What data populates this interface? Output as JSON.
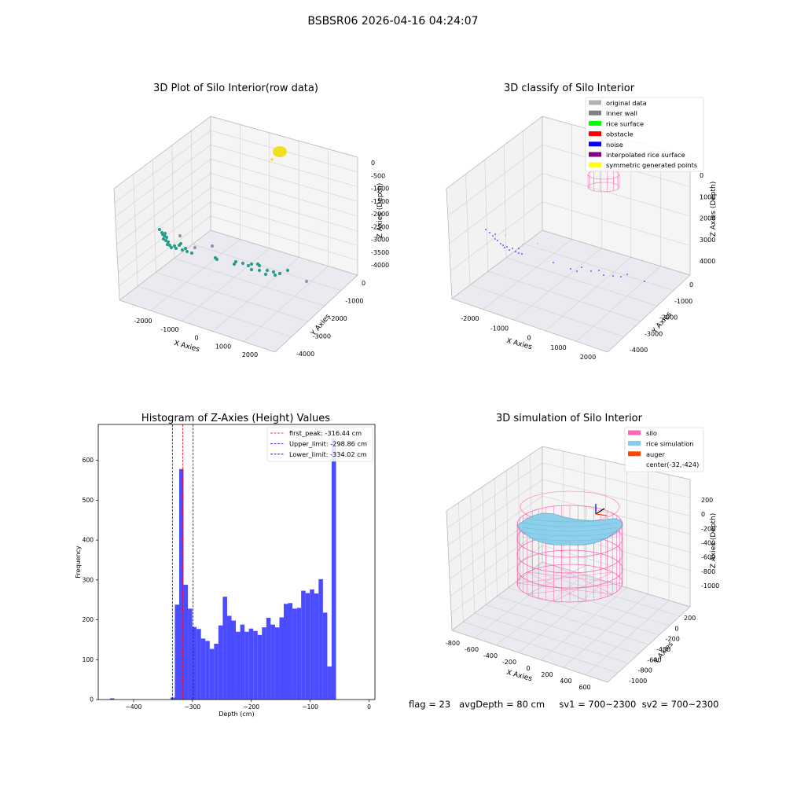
{
  "suptitle": "BSBSR06 2026-04-16 04:24:07",
  "footer": "flag = 23   avgDepth = 80 cm     sv1 = 700~2300  sv2 = 700~2300",
  "chart_data": [
    {
      "type": "scatter",
      "projection": "3d",
      "title": "3D Plot of Silo Interior(row data)",
      "xlabel": "X Axies",
      "ylabel": "Y Axies",
      "zlabel": "Z Axies (Depth)",
      "xticks": [
        "-2000",
        "-1000",
        "0",
        "1000",
        "2000"
      ],
      "yticks": [
        "0",
        "-1000",
        "-2000",
        "-3000",
        "-4000"
      ],
      "zticks": [
        "0",
        "-500",
        "-1000",
        "-1500",
        "-2000",
        "-2500",
        "-3000",
        "-3500",
        "-4000"
      ],
      "grid": true,
      "colors": {
        "points": "#2a9d8f",
        "outlier": "#8e94b8",
        "top_cluster": "#f0e020"
      }
    },
    {
      "type": "scatter",
      "projection": "3d",
      "title": "3D classify of Silo Interior",
      "xlabel": "X Axies",
      "ylabel": "Y Axies",
      "zlabel": "Z Axies (Depth)",
      "xticks": [
        "-2000",
        "-1000",
        "0",
        "1000",
        "2000"
      ],
      "yticks": [
        "0",
        "-1000",
        "-2000",
        "-3000",
        "-4000"
      ],
      "zticks": [
        "0",
        "1000",
        "2000",
        "3000",
        "4000"
      ],
      "grid": true,
      "legend_position": "top-right",
      "legend": [
        {
          "label": "original data",
          "color": "#b3b3b3"
        },
        {
          "label": "inner wall",
          "color": "#808080"
        },
        {
          "label": "rice surface",
          "color": "#00ff00"
        },
        {
          "label": "obstacle",
          "color": "#ff0000"
        },
        {
          "label": "noise",
          "color": "#0000ff"
        },
        {
          "label": "interpolated rice surface",
          "color": "#800080"
        },
        {
          "label": "symmetric generated points",
          "color": "#ffff00"
        }
      ]
    },
    {
      "type": "bar",
      "title": "Histogram of Z-Axies (Height) Values",
      "xlabel": "Depth (cm)",
      "ylabel": "Frequency",
      "xlim": [
        -460,
        10
      ],
      "ylim": [
        0,
        690
      ],
      "xticks": [
        -400,
        -300,
        -200,
        -100,
        0
      ],
      "yticks": [
        0,
        100,
        200,
        300,
        400,
        500,
        600
      ],
      "bin_width": 7.4,
      "bars": [
        {
          "x": -440,
          "value": 3
        },
        {
          "x": -337.3,
          "value": 5
        },
        {
          "x": -329.9,
          "value": 238
        },
        {
          "x": -322.5,
          "value": 578
        },
        {
          "x": -315.1,
          "value": 288
        },
        {
          "x": -307.7,
          "value": 228
        },
        {
          "x": -300.3,
          "value": 182
        },
        {
          "x": -292.9,
          "value": 177
        },
        {
          "x": -285.5,
          "value": 153
        },
        {
          "x": -278.1,
          "value": 147
        },
        {
          "x": -270.7,
          "value": 127
        },
        {
          "x": -263.3,
          "value": 140
        },
        {
          "x": -255.9,
          "value": 186
        },
        {
          "x": -248.5,
          "value": 258
        },
        {
          "x": -241.1,
          "value": 210
        },
        {
          "x": -233.7,
          "value": 198
        },
        {
          "x": -226.3,
          "value": 170
        },
        {
          "x": -218.9,
          "value": 188
        },
        {
          "x": -211.5,
          "value": 170
        },
        {
          "x": -204.1,
          "value": 178
        },
        {
          "x": -196.7,
          "value": 172
        },
        {
          "x": -189.3,
          "value": 162
        },
        {
          "x": -181.9,
          "value": 181
        },
        {
          "x": -174.5,
          "value": 205
        },
        {
          "x": -167.1,
          "value": 188
        },
        {
          "x": -159.7,
          "value": 181
        },
        {
          "x": -152.3,
          "value": 206
        },
        {
          "x": -144.9,
          "value": 240
        },
        {
          "x": -137.5,
          "value": 242
        },
        {
          "x": -130.1,
          "value": 228
        },
        {
          "x": -122.7,
          "value": 230
        },
        {
          "x": -115.3,
          "value": 273
        },
        {
          "x": -107.9,
          "value": 267
        },
        {
          "x": -100.5,
          "value": 276
        },
        {
          "x": -93.1,
          "value": 266
        },
        {
          "x": -85.7,
          "value": 302
        },
        {
          "x": -78.3,
          "value": 218
        },
        {
          "x": -70.9,
          "value": 83
        },
        {
          "x": -63.5,
          "value": 655
        }
      ],
      "bar_color": "#4b4bff",
      "vlines": [
        {
          "label": "first_peak: -316.44 cm",
          "x": -316.44,
          "color": "#ff0000"
        },
        {
          "label": "Upper_limit: -298.86 cm",
          "x": -298.86,
          "color": "#0000ff"
        },
        {
          "label": "Lower_limit: -334.02 cm",
          "x": -334.02,
          "color": "#0000ff"
        }
      ],
      "legend_position": "top-right"
    },
    {
      "type": "surface",
      "projection": "3d",
      "title": "3D simulation of Silo Interior",
      "xlabel": "X Axies",
      "ylabel": "Y Axies",
      "zlabel": "Z Axies (Depth)",
      "xticks": [
        "-800",
        "-600",
        "-400",
        "-200",
        "0",
        "200",
        "400",
        "600"
      ],
      "yticks": [
        "200",
        "0",
        "-200",
        "-400",
        "-600",
        "-800",
        "-1000"
      ],
      "zticks": [
        "200",
        "0",
        "-200",
        "-400",
        "-600",
        "-800",
        "-1000"
      ],
      "grid": true,
      "legend_position": "top-right",
      "legend": [
        {
          "label": "silo",
          "color": "#ff69b4"
        },
        {
          "label": "rice simulation",
          "color": "#87ceeb"
        },
        {
          "label": "auger",
          "color": "#ff4500"
        },
        {
          "label": "center(-32,-424)",
          "color": ""
        }
      ]
    }
  ]
}
